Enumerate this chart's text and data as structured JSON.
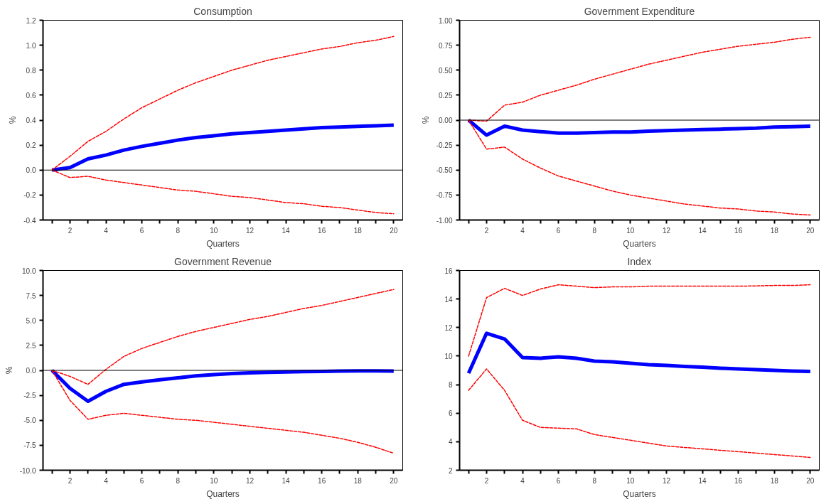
{
  "chart_data": [
    {
      "type": "line",
      "title": "Consumption",
      "xlabel": "Quarters",
      "ylabel": "%",
      "line_style": "solid",
      "x": [
        1,
        2,
        3,
        4,
        5,
        6,
        7,
        8,
        9,
        10,
        11,
        12,
        13,
        14,
        15,
        16,
        17,
        18,
        19,
        20
      ],
      "xlim": [
        0.5,
        20.5
      ],
      "xticks": [
        {
          "value": 1,
          "label": null
        },
        2,
        {
          "value": 3,
          "label": null
        },
        4,
        {
          "value": 5,
          "label": null
        },
        6,
        {
          "value": 7,
          "label": null
        },
        8,
        {
          "value": 9,
          "label": null
        },
        10,
        {
          "value": 11,
          "label": null
        },
        12,
        {
          "value": 13,
          "label": null
        },
        14,
        {
          "value": 15,
          "label": null
        },
        16,
        {
          "value": 17,
          "label": null
        },
        18,
        {
          "value": 19,
          "label": null
        },
        20
      ],
      "ylim": [
        -0.4,
        1.2
      ],
      "yticks": [
        {
          "value": -0.4,
          "label": "-0.4"
        },
        {
          "value": -0.2,
          "label": "-0.2"
        },
        {
          "value": 0,
          "label": "0.0"
        },
        {
          "value": 0.2,
          "label": "0.2"
        },
        {
          "value": 0.4,
          "label": "0.4"
        },
        {
          "value": 0.6,
          "label": "0.6"
        },
        {
          "value": 0.8,
          "label": "0.8"
        },
        {
          "value": 1,
          "label": "1.0"
        },
        {
          "value": 1.2,
          "label": "1.2"
        }
      ],
      "ref_lines": [
        {
          "axis": "y",
          "value": 0,
          "color": "#000000"
        }
      ],
      "series": [
        {
          "color": "#0000ff",
          "values": [
            0,
            0.02,
            0.09,
            0.12,
            0.16,
            0.19,
            0.215,
            0.24,
            0.26,
            0.275,
            0.29,
            0.3,
            0.31,
            0.32,
            0.33,
            0.34,
            0.345,
            0.35,
            0.355,
            0.36
          ]
        },
        {
          "color": "#ff0000",
          "line_style": "dashed",
          "values": [
            0,
            0.11,
            0.23,
            0.31,
            0.41,
            0.5,
            0.57,
            0.64,
            0.7,
            0.75,
            0.8,
            0.84,
            0.88,
            0.91,
            0.94,
            0.97,
            0.99,
            1.02,
            1.04,
            1.07
          ]
        },
        {
          "color": "#ff0000",
          "line_style": "dashed",
          "values": [
            0,
            -0.06,
            -0.05,
            -0.08,
            -0.1,
            -0.12,
            -0.14,
            -0.16,
            -0.17,
            -0.19,
            -0.21,
            -0.22,
            -0.24,
            -0.26,
            -0.27,
            -0.29,
            -0.3,
            -0.32,
            -0.34,
            -0.35
          ]
        }
      ]
    },
    {
      "type": "line",
      "title": "Government Expenditure",
      "xlabel": "Quarters",
      "ylabel": "%",
      "line_style": "solid",
      "x": [
        1,
        2,
        3,
        4,
        5,
        6,
        7,
        8,
        9,
        10,
        11,
        12,
        13,
        14,
        15,
        16,
        17,
        18,
        19,
        20
      ],
      "xlim": [
        0.5,
        20.5
      ],
      "xticks": [
        {
          "value": 1,
          "label": null
        },
        2,
        {
          "value": 3,
          "label": null
        },
        4,
        {
          "value": 5,
          "label": null
        },
        6,
        {
          "value": 7,
          "label": null
        },
        8,
        {
          "value": 9,
          "label": null
        },
        10,
        {
          "value": 11,
          "label": null
        },
        12,
        {
          "value": 13,
          "label": null
        },
        14,
        {
          "value": 15,
          "label": null
        },
        16,
        {
          "value": 17,
          "label": null
        },
        18,
        {
          "value": 19,
          "label": null
        },
        20
      ],
      "ylim": [
        -1.0,
        1.0
      ],
      "yticks": [
        {
          "value": -1,
          "label": "-1.00"
        },
        {
          "value": -0.75,
          "label": "-0.75"
        },
        {
          "value": -0.5,
          "label": "-0.50"
        },
        {
          "value": -0.25,
          "label": "-0.25"
        },
        {
          "value": 0,
          "label": "0.00"
        },
        {
          "value": 0.25,
          "label": "0.25"
        },
        {
          "value": 0.5,
          "label": "0.50"
        },
        {
          "value": 0.75,
          "label": "0.75"
        },
        {
          "value": 1,
          "label": "1.00"
        }
      ],
      "ref_lines": [
        {
          "axis": "y",
          "value": 0,
          "color": "#000000"
        }
      ],
      "series": [
        {
          "color": "#0000ff",
          "values": [
            0,
            -0.15,
            -0.06,
            -0.1,
            -0.115,
            -0.13,
            -0.13,
            -0.125,
            -0.12,
            -0.12,
            -0.11,
            -0.105,
            -0.1,
            -0.095,
            -0.09,
            -0.085,
            -0.08,
            -0.07,
            -0.065,
            -0.06
          ]
        },
        {
          "color": "#ff0000",
          "line_style": "dashed",
          "values": [
            0,
            -0.01,
            0.15,
            0.18,
            0.25,
            0.3,
            0.35,
            0.41,
            0.46,
            0.51,
            0.56,
            0.6,
            0.64,
            0.68,
            0.71,
            0.74,
            0.76,
            0.78,
            0.81,
            0.83
          ]
        },
        {
          "color": "#ff0000",
          "line_style": "dashed",
          "values": [
            0,
            -0.29,
            -0.27,
            -0.39,
            -0.48,
            -0.56,
            -0.61,
            -0.66,
            -0.71,
            -0.75,
            -0.78,
            -0.81,
            -0.84,
            -0.86,
            -0.88,
            -0.89,
            -0.91,
            -0.92,
            -0.94,
            -0.95
          ]
        }
      ]
    },
    {
      "type": "line",
      "title": "Government Revenue",
      "xlabel": "Quarters",
      "ylabel": "%",
      "line_style": "solid",
      "x": [
        1,
        2,
        3,
        4,
        5,
        6,
        7,
        8,
        9,
        10,
        11,
        12,
        13,
        14,
        15,
        16,
        17,
        18,
        19,
        20
      ],
      "xlim": [
        0.5,
        20.5
      ],
      "xticks": [
        {
          "value": 1,
          "label": null
        },
        2,
        {
          "value": 3,
          "label": null
        },
        4,
        {
          "value": 5,
          "label": null
        },
        6,
        {
          "value": 7,
          "label": null
        },
        8,
        {
          "value": 9,
          "label": null
        },
        10,
        {
          "value": 11,
          "label": null
        },
        12,
        {
          "value": 13,
          "label": null
        },
        14,
        {
          "value": 15,
          "label": null
        },
        16,
        {
          "value": 17,
          "label": null
        },
        18,
        {
          "value": 19,
          "label": null
        },
        20
      ],
      "ylim": [
        -10,
        10
      ],
      "yticks": [
        {
          "value": -10,
          "label": "-10.0"
        },
        {
          "value": -7.5,
          "label": "-7.5"
        },
        {
          "value": -5,
          "label": "-5.0"
        },
        {
          "value": -2.5,
          "label": "-2.5"
        },
        {
          "value": 0,
          "label": "0.0"
        },
        {
          "value": 2.5,
          "label": "2.5"
        },
        {
          "value": 5,
          "label": "5.0"
        },
        {
          "value": 7.5,
          "label": "7.5"
        },
        {
          "value": 10,
          "label": "10.0"
        }
      ],
      "ref_lines": [
        {
          "axis": "y",
          "value": 0,
          "color": "#000000"
        }
      ],
      "series": [
        {
          "color": "#0000ff",
          "values": [
            0,
            -1.8,
            -3.1,
            -2.1,
            -1.4,
            -1.15,
            -0.95,
            -0.75,
            -0.55,
            -0.42,
            -0.32,
            -0.25,
            -0.2,
            -0.16,
            -0.12,
            -0.1,
            -0.08,
            -0.06,
            -0.06,
            -0.07
          ]
        },
        {
          "color": "#ff0000",
          "line_style": "dashed",
          "values": [
            0,
            -0.6,
            -1.4,
            0.1,
            1.4,
            2.2,
            2.8,
            3.4,
            3.9,
            4.3,
            4.7,
            5.1,
            5.4,
            5.8,
            6.2,
            6.5,
            6.9,
            7.3,
            7.7,
            8.1
          ]
        },
        {
          "color": "#ff0000",
          "line_style": "dashed",
          "values": [
            0,
            -3.0,
            -4.9,
            -4.5,
            -4.3,
            -4.5,
            -4.7,
            -4.9,
            -5.0,
            -5.2,
            -5.4,
            -5.6,
            -5.8,
            -6.0,
            -6.2,
            -6.5,
            -6.8,
            -7.2,
            -7.7,
            -8.3
          ]
        }
      ]
    },
    {
      "type": "line",
      "title": "Index",
      "xlabel": "Quarters",
      "line_style": "solid",
      "x": [
        1,
        2,
        3,
        4,
        5,
        6,
        7,
        8,
        9,
        10,
        11,
        12,
        13,
        14,
        15,
        16,
        17,
        18,
        19,
        20
      ],
      "xlim": [
        0.5,
        20.5
      ],
      "xticks": [
        {
          "value": 1,
          "label": null
        },
        2,
        {
          "value": 3,
          "label": null
        },
        4,
        {
          "value": 5,
          "label": null
        },
        6,
        {
          "value": 7,
          "label": null
        },
        8,
        {
          "value": 9,
          "label": null
        },
        10,
        {
          "value": 11,
          "label": null
        },
        12,
        {
          "value": 13,
          "label": null
        },
        14,
        {
          "value": 15,
          "label": null
        },
        16,
        {
          "value": 17,
          "label": null
        },
        18,
        {
          "value": 19,
          "label": null
        },
        20
      ],
      "ylim": [
        2,
        16
      ],
      "yticks": [
        2,
        4,
        6,
        8,
        10,
        12,
        14,
        16
      ],
      "series": [
        {
          "color": "#0000ff",
          "values": [
            8.8,
            11.6,
            11.2,
            9.9,
            9.85,
            9.95,
            9.85,
            9.65,
            9.6,
            9.5,
            9.4,
            9.35,
            9.28,
            9.22,
            9.15,
            9.1,
            9.05,
            9.0,
            8.95,
            8.92
          ]
        },
        {
          "color": "#ff0000",
          "line_style": "dashed",
          "values": [
            10.0,
            14.1,
            14.75,
            14.25,
            14.7,
            15.0,
            14.9,
            14.8,
            14.85,
            14.85,
            14.9,
            14.9,
            14.9,
            14.9,
            14.9,
            14.9,
            14.92,
            14.95,
            14.95,
            15.0
          ]
        },
        {
          "color": "#ff0000",
          "line_style": "dashed",
          "values": [
            7.6,
            9.1,
            7.6,
            5.5,
            5.0,
            4.95,
            4.9,
            4.5,
            4.3,
            4.1,
            3.9,
            3.7,
            3.6,
            3.5,
            3.4,
            3.3,
            3.2,
            3.1,
            3.0,
            2.9
          ]
        }
      ]
    }
  ]
}
